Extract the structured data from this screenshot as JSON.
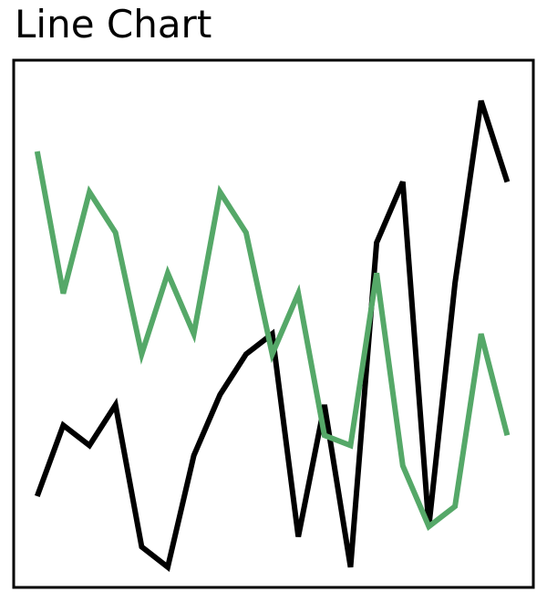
{
  "chart_data": {
    "type": "line",
    "title": "Line Chart",
    "xlabel": "",
    "ylabel": "",
    "x": [
      0,
      1,
      2,
      3,
      4,
      5,
      6,
      7,
      8,
      9,
      10,
      11,
      12,
      13,
      14,
      15,
      16,
      17,
      18
    ],
    "series": [
      {
        "color": "#000000",
        "values": [
          0.9,
          1.6,
          1.4,
          1.8,
          0.4,
          0.2,
          1.3,
          1.9,
          2.3,
          2.5,
          0.5,
          1.8,
          0.2,
          3.4,
          4.0,
          0.6,
          3.0,
          4.8,
          4.0
        ]
      },
      {
        "color": "#55a868",
        "values": [
          4.3,
          2.9,
          3.9,
          3.5,
          2.3,
          3.1,
          2.5,
          3.9,
          3.5,
          2.3,
          2.9,
          1.5,
          1.4,
          3.1,
          1.2,
          0.6,
          0.8,
          2.5,
          1.5
        ]
      }
    ],
    "xlim": [
      -0.9,
      19
    ],
    "ylim": [
      0,
      5.2
    ],
    "grid": false,
    "ticks": false
  }
}
